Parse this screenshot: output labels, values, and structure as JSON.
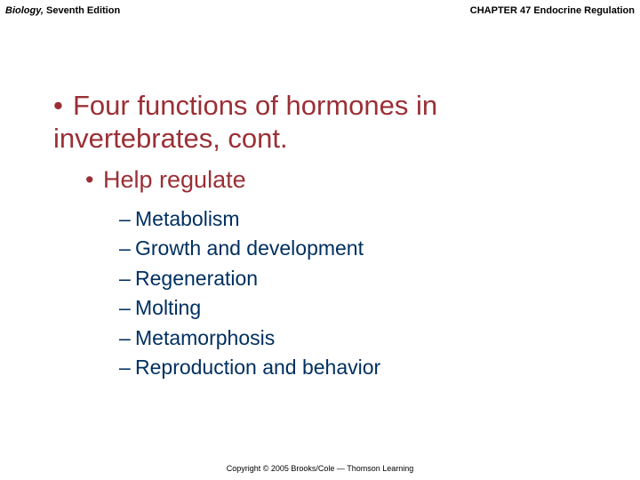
{
  "header": {
    "book_title": "Biology,",
    "edition": " Seventh Edition",
    "chapter": "CHAPTER 47 Endocrine Regulation"
  },
  "slide": {
    "level1_bullet": "•",
    "level1_text": "Four functions of hormones in invertebrates, cont.",
    "level2_bullet": "•",
    "level2_text": "Help regulate",
    "level3_dash": "–",
    "items": [
      "Metabolism",
      "Growth and development",
      "Regeneration",
      "Molting",
      "Metamorphosis",
      "Reproduction and behavior"
    ]
  },
  "footer": {
    "copyright": "Copyright © 2005 Brooks/Cole — Thomson Learning"
  },
  "colors": {
    "heading_color": "#9a3036",
    "item_color": "#003060",
    "text_color": "#000000",
    "background": "#ffffff"
  },
  "typography": {
    "header_fontsize": 11,
    "level1_fontsize": 31,
    "level2_fontsize": 27,
    "level3_fontsize": 23,
    "footer_fontsize": 9
  }
}
